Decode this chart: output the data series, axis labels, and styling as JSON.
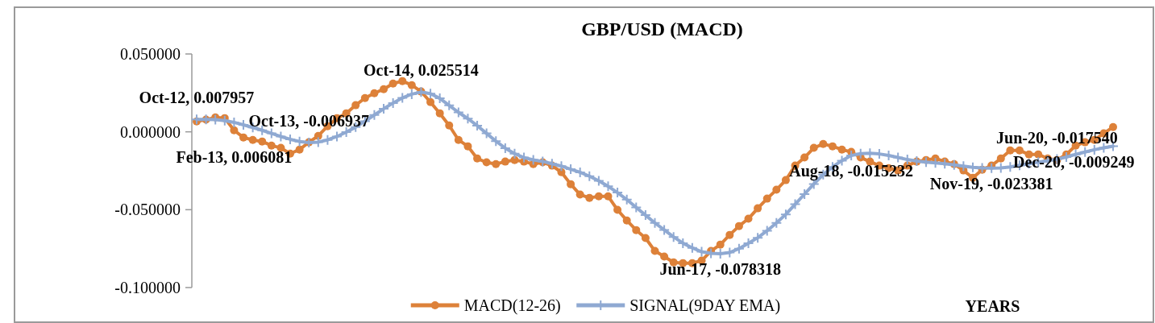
{
  "chart_data": {
    "type": "line",
    "title": "GBP/USD  (MACD)",
    "xlabel": "YEARS",
    "categories": [
      null,
      null,
      null,
      null,
      null,
      null,
      null,
      null,
      null,
      null,
      null,
      null,
      null,
      null,
      null,
      null,
      null,
      null,
      null,
      null,
      null,
      null,
      null,
      null,
      null,
      null,
      null,
      null,
      null,
      null,
      null,
      null,
      null,
      null,
      null,
      null,
      null,
      null,
      null,
      null,
      null,
      null,
      null,
      null,
      null,
      null,
      null,
      null,
      null,
      null,
      null,
      null,
      null,
      null,
      null,
      null,
      null,
      null,
      null,
      null,
      null,
      null,
      null,
      null,
      null,
      null,
      null,
      null,
      null,
      null,
      null,
      null,
      null,
      null,
      null,
      null,
      null,
      null,
      null,
      null,
      null,
      null,
      null,
      null,
      null,
      null,
      null,
      null,
      null,
      null,
      null,
      null,
      null,
      null,
      null,
      null,
      null,
      null,
      null
    ],
    "ylim": [
      -0.1,
      0.05
    ],
    "yticks": [
      {
        "value": 0.05,
        "label": "0.050000"
      },
      {
        "value": 0,
        "label": "0.000000"
      },
      {
        "value": -0.05,
        "label": "-0.050000"
      },
      {
        "value": -0.1,
        "label": "-0.100000"
      }
    ],
    "tick_labels": "y",
    "legend": "bottom",
    "line_style": "solid",
    "series": [
      {
        "name": "MACD(12-26)",
        "color": "#dd8139",
        "marker": "circle",
        "values": [
          0.0067,
          0.0078,
          0.0093,
          0.0088,
          0.001,
          -0.0036,
          -0.0052,
          -0.0062,
          -0.0088,
          -0.0103,
          -0.014,
          -0.0114,
          -0.0067,
          -0.0026,
          0.0036,
          0.0088,
          0.0119,
          0.0171,
          0.0217,
          0.0248,
          0.0274,
          0.031,
          0.0326,
          0.03,
          0.0259,
          0.0191,
          0.0119,
          0.0041,
          -0.0052,
          -0.0093,
          -0.0171,
          -0.0196,
          -0.0207,
          -0.0191,
          -0.0181,
          -0.0191,
          -0.0207,
          -0.0196,
          -0.0217,
          -0.0259,
          -0.0336,
          -0.0403,
          -0.0424,
          -0.0414,
          -0.0414,
          -0.0501,
          -0.0569,
          -0.0631,
          -0.0682,
          -0.0765,
          -0.0801,
          -0.0838,
          -0.0843,
          -0.0843,
          -0.0827,
          -0.0765,
          -0.0724,
          -0.0662,
          -0.0605,
          -0.0558,
          -0.0491,
          -0.0429,
          -0.0372,
          -0.031,
          -0.0217,
          -0.0165,
          -0.0103,
          -0.0078,
          -0.0093,
          -0.0114,
          -0.0129,
          -0.0165,
          -0.0191,
          -0.0217,
          -0.0233,
          -0.0248,
          -0.0217,
          -0.0191,
          -0.0181,
          -0.0171,
          -0.0191,
          -0.0207,
          -0.0248,
          -0.0295,
          -0.0243,
          -0.0217,
          -0.0171,
          -0.0119,
          -0.0119,
          -0.0145,
          -0.0145,
          -0.0171,
          -0.0181,
          -0.0145,
          -0.0088,
          -0.0067,
          -0.0052,
          -0.001,
          0.0031
        ]
      },
      {
        "name": "SIGNAL(9DAY EMA)",
        "color": "#8fa9d2",
        "marker": "cross",
        "values": [
          0.007957,
          0.008,
          0.0078,
          0.0072,
          0.006081,
          0.0045,
          0.0028,
          0.001,
          -0.001,
          -0.003,
          -0.0048,
          -0.0062,
          -0.006937,
          -0.0066,
          -0.0052,
          -0.003,
          -0.0002,
          0.003,
          0.0068,
          0.0108,
          0.0148,
          0.0185,
          0.0218,
          0.0242,
          0.025514,
          0.0245,
          0.0215,
          0.017,
          0.0125,
          0.0085,
          0.004,
          -0.001,
          -0.006,
          -0.0105,
          -0.014,
          -0.0165,
          -0.018,
          -0.019,
          -0.0205,
          -0.022,
          -0.024,
          -0.026,
          -0.0285,
          -0.0315,
          -0.035,
          -0.039,
          -0.0435,
          -0.0485,
          -0.0535,
          -0.0585,
          -0.063,
          -0.0675,
          -0.0715,
          -0.0745,
          -0.077,
          -0.078,
          -0.078318,
          -0.0775,
          -0.075,
          -0.0715,
          -0.068,
          -0.0635,
          -0.0585,
          -0.053,
          -0.0465,
          -0.04,
          -0.0335,
          -0.0275,
          -0.0225,
          -0.0185,
          -0.015232,
          -0.014,
          -0.0138,
          -0.0142,
          -0.0152,
          -0.0165,
          -0.0178,
          -0.0188,
          -0.0194,
          -0.0199,
          -0.0205,
          -0.0212,
          -0.022,
          -0.0228,
          -0.0232,
          -0.023381,
          -0.0232,
          -0.0225,
          -0.0215,
          -0.0205,
          -0.0195,
          -0.0185,
          -0.01754,
          -0.0162,
          -0.0145,
          -0.013,
          -0.0115,
          -0.0103,
          -0.009249
        ]
      }
    ],
    "annotations": [
      {
        "text": "Oct-12, 0.007957",
        "y": 0.007957
      },
      {
        "text": "Feb-13, 0.006081",
        "y": 0.006081
      },
      {
        "text": "Oct-13, -0.006937",
        "y": -0.006937
      },
      {
        "text": "Oct-14, 0.025514",
        "y": 0.025514
      },
      {
        "text": "Jun-17, -0.078318",
        "y": -0.078318
      },
      {
        "text": "Aug-18, -0.015232",
        "y": -0.015232
      },
      {
        "text": "Nov-19, -0.023381",
        "y": -0.023381
      },
      {
        "text": "Jun-20, -0.017540",
        "y": -0.01754
      },
      {
        "text": "Dec-20, -0.009249",
        "y": -0.009249
      }
    ]
  }
}
